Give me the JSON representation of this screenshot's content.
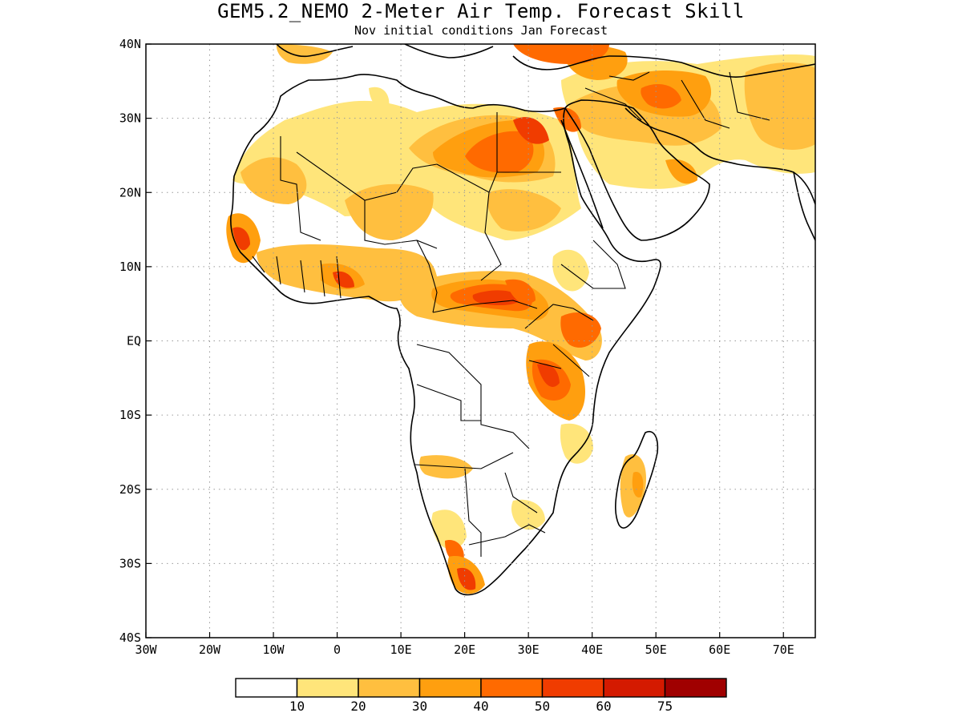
{
  "title": "GEM5.2_NEMO 2-Meter Air Temp. Forecast Skill",
  "subtitle": "Nov initial conditions  Jan Forecast",
  "map": {
    "lon_range": [
      -30,
      75
    ],
    "lat_range": [
      -40,
      40
    ],
    "lat_ticks": [
      {
        "lat": 40,
        "label": "40N"
      },
      {
        "lat": 30,
        "label": "30N"
      },
      {
        "lat": 20,
        "label": "20N"
      },
      {
        "lat": 10,
        "label": "10N"
      },
      {
        "lat": 0,
        "label": "EQ"
      },
      {
        "lat": -10,
        "label": "10S"
      },
      {
        "lat": -20,
        "label": "20S"
      },
      {
        "lat": -30,
        "label": "30S"
      },
      {
        "lat": -40,
        "label": "40S"
      }
    ],
    "lon_ticks": [
      {
        "lon": -30,
        "label": "30W"
      },
      {
        "lon": -20,
        "label": "20W"
      },
      {
        "lon": -10,
        "label": "10W"
      },
      {
        "lon": 0,
        "label": "0"
      },
      {
        "lon": 10,
        "label": "10E"
      },
      {
        "lon": 20,
        "label": "20E"
      },
      {
        "lon": 30,
        "label": "30E"
      },
      {
        "lon": 40,
        "label": "40E"
      },
      {
        "lon": 50,
        "label": "50E"
      },
      {
        "lon": 60,
        "label": "60E"
      },
      {
        "lon": 70,
        "label": "70E"
      }
    ],
    "grid": true
  },
  "colorbar": {
    "colors": [
      "#ffffff",
      "#ffe57a",
      "#ffbf3f",
      "#ff9f0f",
      "#ff6a00",
      "#f03c00",
      "#d41a00",
      "#a00000"
    ],
    "labels": [
      "10",
      "20",
      "30",
      "40",
      "50",
      "60",
      "75"
    ]
  }
}
